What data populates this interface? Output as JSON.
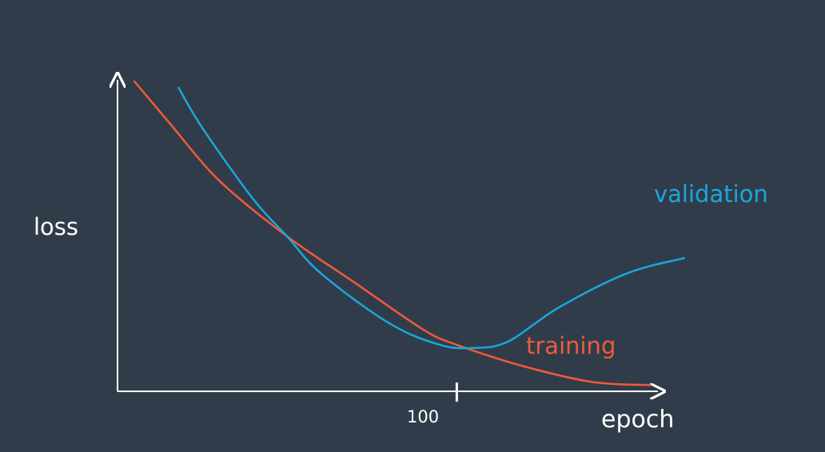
{
  "chart_data": {
    "type": "line",
    "title": "",
    "xlabel": "epoch",
    "ylabel": "loss",
    "x_ticks": [
      100
    ],
    "xlim": [
      0,
      180
    ],
    "ylim": [
      0,
      1
    ],
    "grid": false,
    "legend": "inline labels",
    "series": [
      {
        "name": "training",
        "color": "#f05a3c",
        "points": [
          [
            5,
            1.0
          ],
          [
            15,
            0.87
          ],
          [
            30,
            0.68
          ],
          [
            50,
            0.5
          ],
          [
            70,
            0.35
          ],
          [
            90,
            0.2
          ],
          [
            100,
            0.15
          ],
          [
            120,
            0.08
          ],
          [
            140,
            0.03
          ],
          [
            157,
            0.02
          ]
        ]
      },
      {
        "name": "validation",
        "color": "#1aa7dc",
        "points": [
          [
            18,
            0.98
          ],
          [
            25,
            0.85
          ],
          [
            40,
            0.62
          ],
          [
            50,
            0.5
          ],
          [
            60,
            0.38
          ],
          [
            80,
            0.22
          ],
          [
            95,
            0.15
          ],
          [
            105,
            0.14
          ],
          [
            115,
            0.16
          ],
          [
            130,
            0.27
          ],
          [
            150,
            0.38
          ],
          [
            167,
            0.43
          ]
        ]
      }
    ]
  }
}
